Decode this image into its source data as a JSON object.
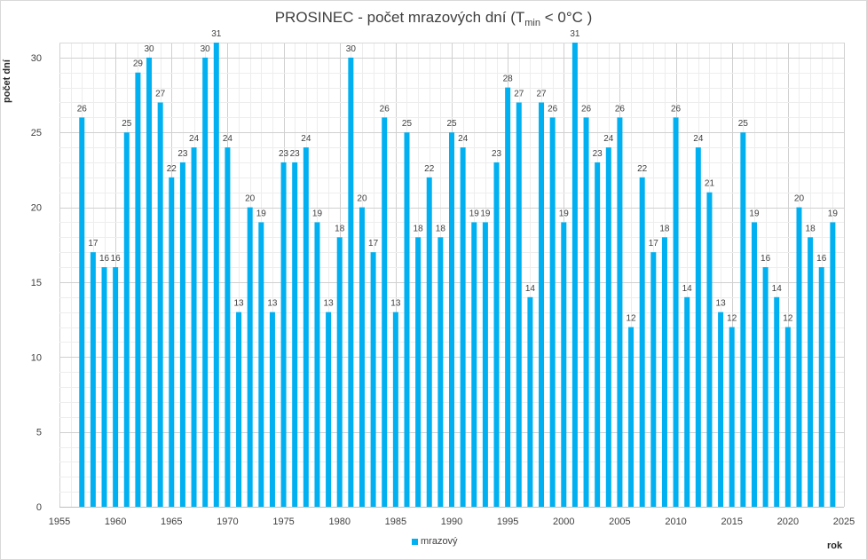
{
  "chart_data": {
    "type": "bar",
    "title": "PROSINEC - počet mrazových dní (T",
    "title_sub": "min",
    "title_tail": " < 0°C )",
    "xlabel": "rok",
    "ylabel": "počet dní",
    "xlim": [
      1955,
      2025
    ],
    "ylim": [
      0,
      31
    ],
    "x_ticks": [
      1955,
      1960,
      1965,
      1970,
      1975,
      1980,
      1985,
      1990,
      1995,
      2000,
      2005,
      2010,
      2015,
      2020,
      2025
    ],
    "y_ticks": [
      0,
      5,
      10,
      15,
      20,
      25,
      30
    ],
    "grid": true,
    "legend_position": "bottom",
    "bar_color": "#00b0f0",
    "series": [
      {
        "name": "mrazový",
        "x": [
          1957,
          1958,
          1959,
          1960,
          1961,
          1962,
          1963,
          1964,
          1965,
          1966,
          1967,
          1968,
          1969,
          1970,
          1971,
          1972,
          1973,
          1974,
          1975,
          1976,
          1977,
          1978,
          1979,
          1980,
          1981,
          1982,
          1983,
          1984,
          1985,
          1986,
          1987,
          1988,
          1989,
          1990,
          1991,
          1992,
          1993,
          1994,
          1995,
          1996,
          1997,
          1998,
          1999,
          2000,
          2001,
          2002,
          2003,
          2004,
          2005,
          2006,
          2007,
          2008,
          2009,
          2010,
          2011,
          2012,
          2013,
          2014,
          2015,
          2016,
          2017,
          2018,
          2019,
          2020,
          2021,
          2022,
          2023,
          2024
        ],
        "values": [
          26,
          17,
          16,
          16,
          25,
          29,
          30,
          27,
          22,
          23,
          24,
          30,
          31,
          24,
          13,
          20,
          19,
          13,
          23,
          23,
          24,
          19,
          13,
          18,
          30,
          20,
          17,
          26,
          13,
          25,
          18,
          22,
          18,
          25,
          24,
          19,
          19,
          23,
          28,
          27,
          14,
          27,
          26,
          19,
          31,
          26,
          23,
          24,
          26,
          12,
          22,
          17,
          18,
          26,
          14,
          24,
          21,
          13,
          12,
          25,
          19,
          16,
          14,
          12,
          20,
          18,
          16,
          19
        ]
      }
    ]
  }
}
